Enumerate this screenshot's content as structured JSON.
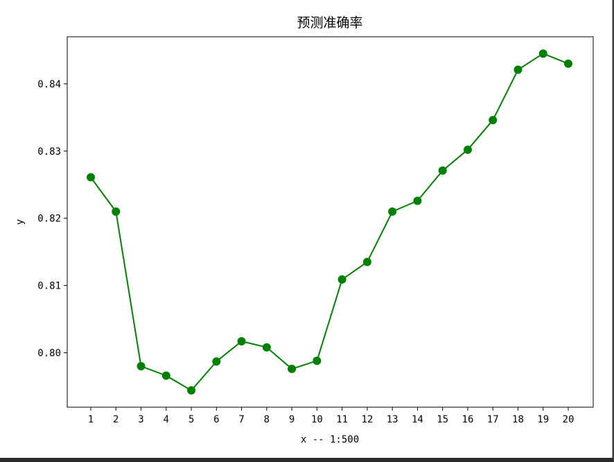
{
  "chart_data": {
    "type": "line",
    "title": "预测准确率",
    "xlabel": "x -- 1:500",
    "ylabel": "y",
    "categories": [
      "1",
      "2",
      "3",
      "4",
      "5",
      "6",
      "7",
      "8",
      "9",
      "10",
      "11",
      "12",
      "13",
      "14",
      "15",
      "16",
      "17",
      "18",
      "19",
      "20"
    ],
    "series": [
      {
        "values": [
          0.8261,
          0.821,
          0.798,
          0.7966,
          0.7944,
          0.7987,
          0.8017,
          0.8008,
          0.7976,
          0.7988,
          0.8109,
          0.8135,
          0.821,
          0.8226,
          0.8271,
          0.8302,
          0.8346,
          0.8421,
          0.8445,
          0.843
        ],
        "color": "#008000",
        "marker": "circle"
      }
    ],
    "yticks": [
      "0.80",
      "0.81",
      "0.82",
      "0.83",
      "0.84"
    ],
    "ytick_values": [
      0.8,
      0.81,
      0.82,
      0.83,
      0.84
    ],
    "ylim": [
      0.7919,
      0.847
    ],
    "grid": false
  }
}
